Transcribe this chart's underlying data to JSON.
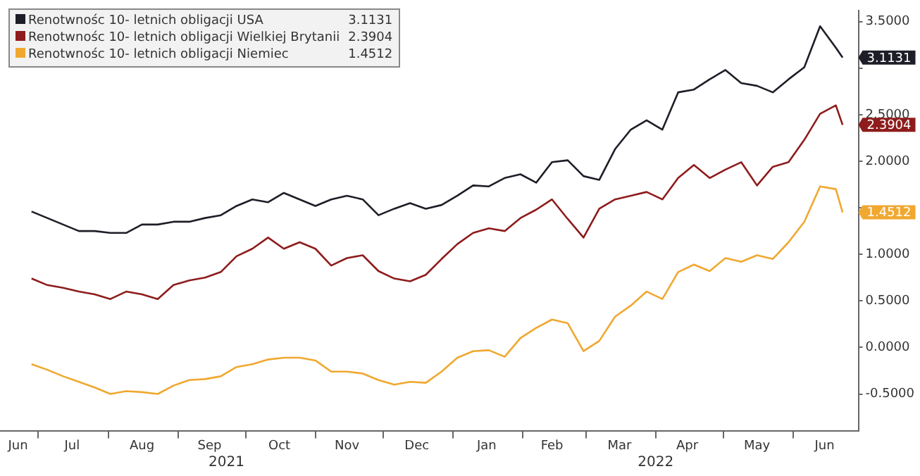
{
  "chart_data": {
    "type": "line",
    "legend": "top left",
    "marker": "none",
    "x": [
      "2021-06-28",
      "2021-07-05",
      "2021-07-12",
      "2021-07-19",
      "2021-07-26",
      "2021-08-02",
      "2021-08-09",
      "2021-08-16",
      "2021-08-23",
      "2021-08-30",
      "2021-09-06",
      "2021-09-13",
      "2021-09-20",
      "2021-09-27",
      "2021-10-04",
      "2021-10-11",
      "2021-10-18",
      "2021-10-25",
      "2021-11-01",
      "2021-11-08",
      "2021-11-15",
      "2021-11-22",
      "2021-11-29",
      "2021-12-06",
      "2021-12-13",
      "2021-12-20",
      "2021-12-27",
      "2022-01-03",
      "2022-01-10",
      "2022-01-17",
      "2022-01-24",
      "2022-01-31",
      "2022-02-07",
      "2022-02-14",
      "2022-02-21",
      "2022-02-28",
      "2022-03-07",
      "2022-03-14",
      "2022-03-21",
      "2022-03-28",
      "2022-04-04",
      "2022-04-11",
      "2022-04-18",
      "2022-04-25",
      "2022-05-02",
      "2022-05-09",
      "2022-05-16",
      "2022-05-23",
      "2022-05-30",
      "2022-06-06",
      "2022-06-13",
      "2022-06-20",
      "2022-06-23"
    ],
    "series": [
      {
        "name": "Renotwnośc 10- letnich obligacji USA",
        "color": "#1e1e28",
        "values": [
          1.46,
          1.39,
          1.32,
          1.25,
          1.25,
          1.23,
          1.23,
          1.32,
          1.32,
          1.35,
          1.35,
          1.39,
          1.42,
          1.52,
          1.59,
          1.56,
          1.66,
          1.59,
          1.52,
          1.59,
          1.63,
          1.59,
          1.42,
          1.49,
          1.55,
          1.49,
          1.53,
          1.63,
          1.74,
          1.73,
          1.82,
          1.86,
          1.77,
          1.99,
          2.01,
          1.84,
          1.8,
          2.13,
          2.34,
          2.44,
          2.34,
          2.74,
          2.77,
          2.88,
          2.98,
          2.84,
          2.81,
          2.74,
          2.88,
          3.01,
          3.45,
          3.22,
          3.1131
        ],
        "value_labels": [
          null,
          null,
          null,
          null,
          null,
          null,
          null,
          null,
          null,
          null,
          null,
          null,
          null,
          null,
          null,
          null,
          null,
          null,
          null,
          null,
          null,
          null,
          null,
          null,
          null,
          null,
          null,
          null,
          null,
          null,
          null,
          null,
          null,
          null,
          null,
          null,
          null,
          null,
          null,
          null,
          null,
          null,
          null,
          null,
          null,
          null,
          null,
          null,
          null,
          null,
          null,
          null,
          "3.1131"
        ]
      },
      {
        "name": "Renotwnośc 10- letnich obligacji Wielkiej Brytanii",
        "color": "#8e1c1c",
        "values": [
          0.74,
          0.67,
          0.64,
          0.6,
          0.57,
          0.52,
          0.6,
          0.57,
          0.52,
          0.67,
          0.72,
          0.75,
          0.81,
          0.98,
          1.06,
          1.18,
          1.06,
          1.13,
          1.06,
          0.88,
          0.96,
          0.99,
          0.82,
          0.74,
          0.71,
          0.78,
          0.95,
          1.11,
          1.23,
          1.28,
          1.25,
          1.39,
          1.48,
          1.59,
          1.38,
          1.18,
          1.49,
          1.59,
          1.63,
          1.67,
          1.59,
          1.82,
          1.96,
          1.82,
          1.91,
          1.99,
          1.74,
          1.94,
          1.99,
          2.23,
          2.51,
          2.6,
          2.3904
        ],
        "value_labels": [
          null,
          null,
          null,
          null,
          null,
          null,
          null,
          null,
          null,
          null,
          null,
          null,
          null,
          null,
          null,
          null,
          null,
          null,
          null,
          null,
          null,
          null,
          null,
          null,
          null,
          null,
          null,
          null,
          null,
          null,
          null,
          null,
          null,
          null,
          null,
          null,
          null,
          null,
          null,
          null,
          null,
          null,
          null,
          null,
          null,
          null,
          null,
          null,
          null,
          null,
          null,
          null,
          "2.3904"
        ]
      },
      {
        "name": "Renotwnośc 10- letnich obligacji Niemiec",
        "color": "#f0a830",
        "values": [
          -0.18,
          -0.24,
          -0.31,
          -0.37,
          -0.43,
          -0.5,
          -0.47,
          -0.48,
          -0.5,
          -0.41,
          -0.35,
          -0.34,
          -0.31,
          -0.21,
          -0.18,
          -0.13,
          -0.11,
          -0.11,
          -0.14,
          -0.26,
          -0.26,
          -0.28,
          -0.35,
          -0.4,
          -0.37,
          -0.38,
          -0.26,
          -0.11,
          -0.04,
          -0.03,
          -0.1,
          0.1,
          0.21,
          0.3,
          0.26,
          -0.04,
          0.07,
          0.33,
          0.45,
          0.6,
          0.52,
          0.81,
          0.89,
          0.82,
          0.96,
          0.92,
          0.99,
          0.95,
          1.13,
          1.35,
          1.73,
          1.7,
          1.4512
        ],
        "value_labels": [
          null,
          null,
          null,
          null,
          null,
          null,
          null,
          null,
          null,
          null,
          null,
          null,
          null,
          null,
          null,
          null,
          null,
          null,
          null,
          null,
          null,
          null,
          null,
          null,
          null,
          null,
          null,
          null,
          null,
          null,
          null,
          null,
          null,
          null,
          null,
          null,
          null,
          null,
          null,
          null,
          null,
          null,
          null,
          null,
          null,
          null,
          null,
          null,
          null,
          null,
          null,
          null,
          "1.4512"
        ]
      }
    ],
    "xlim": [
      "2021-06-14",
      "2022-06-30"
    ],
    "xticks": [
      {
        "value": "2021-06-22",
        "label": "Jun"
      },
      {
        "value": "2021-07-01",
        "label": null
      },
      {
        "value": "2021-07-16",
        "label": "Jul"
      },
      {
        "value": "2021-08-01",
        "label": null
      },
      {
        "value": "2021-08-16",
        "label": "Aug"
      },
      {
        "value": "2021-09-01",
        "label": null
      },
      {
        "value": "2021-09-15",
        "label": "Sep"
      },
      {
        "value": "2021-10-01",
        "label": null
      },
      {
        "value": "2021-10-16",
        "label": "Oct"
      },
      {
        "value": "2021-11-01",
        "label": null
      },
      {
        "value": "2021-11-15",
        "label": "Nov"
      },
      {
        "value": "2021-12-01",
        "label": null
      },
      {
        "value": "2021-12-16",
        "label": "Dec"
      },
      {
        "value": "2022-01-01",
        "label": null
      },
      {
        "value": "2022-01-16",
        "label": "Jan"
      },
      {
        "value": "2022-02-01",
        "label": null
      },
      {
        "value": "2022-02-14",
        "label": "Feb"
      },
      {
        "value": "2022-03-01",
        "label": null
      },
      {
        "value": "2022-03-16",
        "label": "Mar"
      },
      {
        "value": "2022-04-01",
        "label": null
      },
      {
        "value": "2022-04-15",
        "label": "Apr"
      },
      {
        "value": "2022-05-01",
        "label": null
      },
      {
        "value": "2022-05-16",
        "label": "May"
      },
      {
        "value": "2022-06-01",
        "label": null
      },
      {
        "value": "2022-06-15",
        "label": "Jun"
      }
    ],
    "ylim": [
      -0.9,
      3.62
    ],
    "yticks": [
      {
        "value": -0.5,
        "label": "-0.5000"
      },
      {
        "value": 0,
        "label": "0.0000"
      },
      {
        "value": 0.5,
        "label": "0.5000"
      },
      {
        "value": 1,
        "label": "1.0000"
      },
      {
        "value": 1.5,
        "label": null
      },
      {
        "value": 2,
        "label": "2.0000"
      },
      {
        "value": 2.5,
        "label": "2.5000"
      },
      {
        "value": 3,
        "label": null
      },
      {
        "value": 3.5,
        "label": "3.5000"
      }
    ],
    "grid": false,
    "annotations": [
      "2021",
      "2022"
    ]
  }
}
